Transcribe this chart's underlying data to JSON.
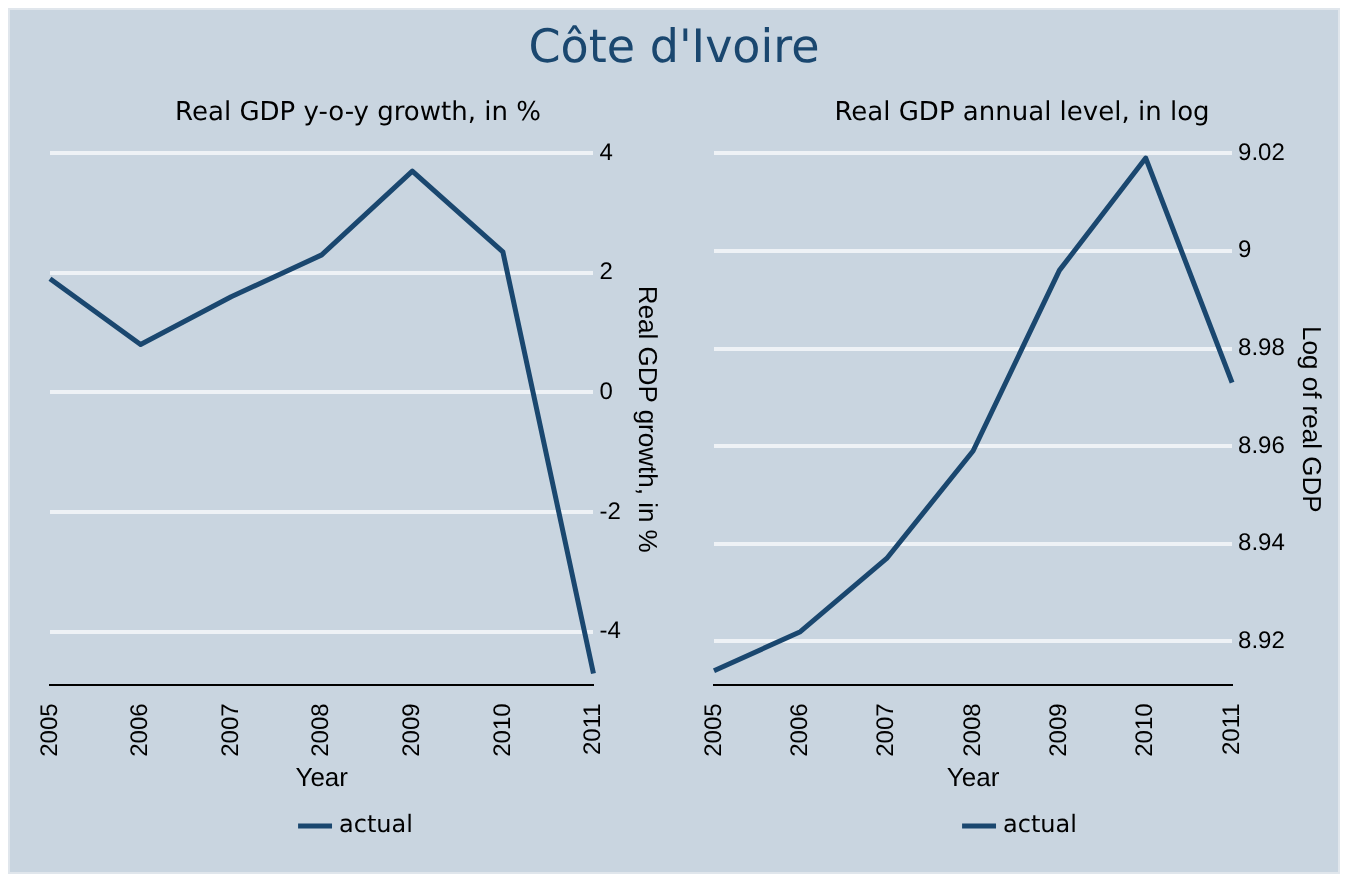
{
  "chart_data": [
    {
      "type": "line",
      "title": "Côte d'Ivoire",
      "subtitle": "Real GDP y-o-y growth, in %",
      "xlabel": "Year",
      "ylabel": "Real GDP growth, in %",
      "x": [
        2005,
        2006,
        2007,
        2008,
        2009,
        2010,
        2011
      ],
      "xlim": [
        2005,
        2011
      ],
      "xticks": [
        2005,
        2006,
        2007,
        2008,
        2009,
        2010,
        2011
      ],
      "ylim": [
        -4.9,
        4
      ],
      "yticks": [
        -4,
        -2,
        0,
        2,
        4
      ],
      "grid": "y",
      "legend": "bottom",
      "marker": "none",
      "series": [
        {
          "name": "actual",
          "color": "#1a476f",
          "values": [
            1.9,
            0.8,
            1.6,
            2.3,
            3.7,
            2.35,
            -4.7
          ]
        }
      ]
    },
    {
      "type": "line",
      "subtitle": "Real GDP annual level, in log",
      "xlabel": "Year",
      "ylabel": "Log of real GDP",
      "x": [
        2005,
        2006,
        2007,
        2008,
        2009,
        2010,
        2011
      ],
      "xlim": [
        2005,
        2011
      ],
      "xticks": [
        2005,
        2006,
        2007,
        2008,
        2009,
        2010,
        2011
      ],
      "ylim": [
        8.911,
        9.02
      ],
      "yticks": [
        8.92,
        8.94,
        8.96,
        8.98,
        9,
        9.02
      ],
      "grid": "y",
      "legend": "bottom",
      "marker": "none",
      "series": [
        {
          "name": "actual",
          "color": "#1a476f",
          "values": [
            8.914,
            8.922,
            8.937,
            8.959,
            8.996,
            9.019,
            8.973
          ]
        }
      ]
    }
  ]
}
